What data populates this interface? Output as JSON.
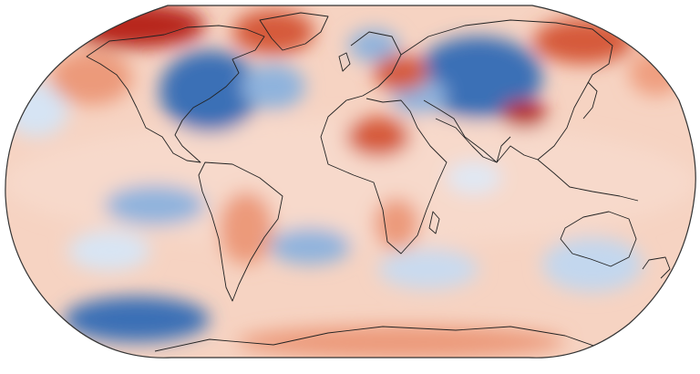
{
  "map": {
    "kind": "global surface air temperature anomaly map",
    "projection": "robinson-like",
    "colormap": {
      "cold_strong": "#3b6fb6",
      "cold": "#8fb3dd",
      "cold_light": "#d6e4f4",
      "neutral": "#f7efea",
      "warm_light": "#f6cdb8",
      "warm": "#ec9a7a",
      "warm_strong": "#d65a3a",
      "hot": "#b8261b"
    },
    "coastline_color": "#222222",
    "outline_color": "#333333",
    "anomaly_regions": [
      {
        "name": "arctic-canada",
        "level": "hot"
      },
      {
        "name": "greenland",
        "level": "warm_strong"
      },
      {
        "name": "eastern-north-america",
        "level": "cold_strong"
      },
      {
        "name": "western-north-america",
        "level": "warm"
      },
      {
        "name": "north-atlantic",
        "level": "cold"
      },
      {
        "name": "scandinavia",
        "level": "cold"
      },
      {
        "name": "eastern-europe",
        "level": "warm_strong"
      },
      {
        "name": "central-asia",
        "level": "cold_strong"
      },
      {
        "name": "east-siberia",
        "level": "warm_strong"
      },
      {
        "name": "tibet",
        "level": "hot"
      },
      {
        "name": "north-africa",
        "level": "warm_strong"
      },
      {
        "name": "southern-africa",
        "level": "warm"
      },
      {
        "name": "south-america",
        "level": "warm"
      },
      {
        "name": "south-pacific",
        "level": "cold"
      },
      {
        "name": "south-atlantic",
        "level": "cold"
      },
      {
        "name": "southern-ocean-west",
        "level": "cold_strong"
      },
      {
        "name": "australia",
        "level": "cold"
      },
      {
        "name": "antarctica",
        "level": "warm"
      }
    ]
  }
}
